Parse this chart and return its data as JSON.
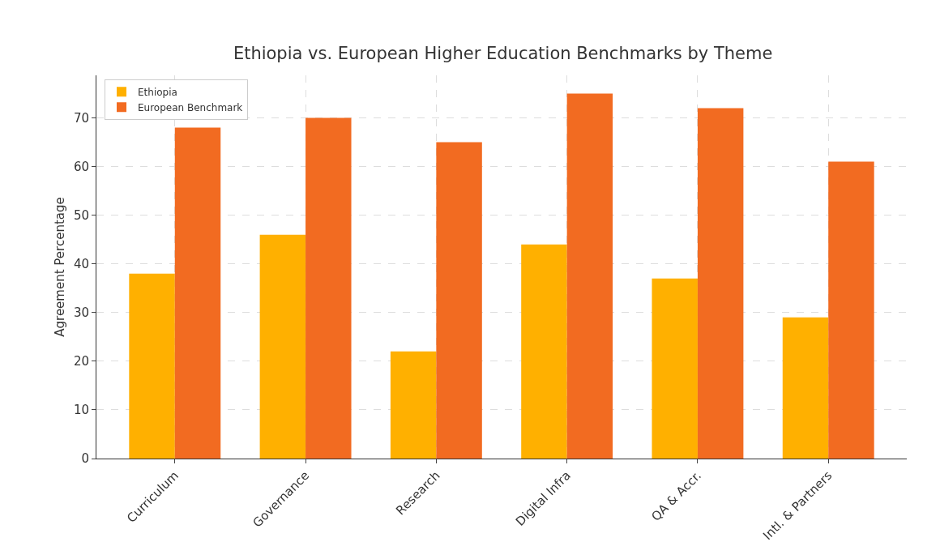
{
  "chart_data": {
    "type": "bar",
    "title": "Ethiopia vs. European Higher Education Benchmarks by Theme",
    "ylabel": "Agreement Percentage",
    "categories": [
      "Curriculum",
      "Governance",
      "Research",
      "Digital Infra",
      "QA & Accr.",
      "Intl. & Partners"
    ],
    "series": [
      {
        "name": "Ethiopia",
        "color": "#ffb000",
        "values": [
          38,
          46,
          22,
          44,
          37,
          29
        ]
      },
      {
        "name": "European Benchmark",
        "color": "#f26b21",
        "values": [
          68,
          70,
          65,
          75,
          72,
          61
        ]
      }
    ],
    "ylim": [
      0,
      78.75
    ],
    "yticks": [
      0,
      10,
      20,
      30,
      40,
      50,
      60,
      70
    ],
    "grid": true,
    "legend": "top left"
  }
}
